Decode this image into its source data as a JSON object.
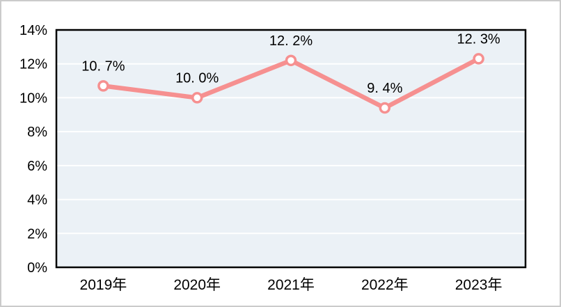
{
  "chart_data": {
    "type": "line",
    "title": "",
    "categories": [
      "2019年",
      "2020年",
      "2021年",
      "2022年",
      "2023年"
    ],
    "series": [
      {
        "name": "",
        "values": [
          10.7,
          10.0,
          12.2,
          9.4,
          12.3
        ],
        "point_labels": [
          "10. 7%",
          "10. 0%",
          "12. 2%",
          "9. 4%",
          "12. 3%"
        ]
      }
    ],
    "xlabel": "",
    "ylabel": "",
    "ylim": [
      0,
      14
    ],
    "ytick_step": 2,
    "ytick_labels": [
      "0%",
      "2%",
      "4%",
      "6%",
      "8%",
      "10%",
      "12%",
      "14%"
    ],
    "grid": "horizontal",
    "legend_position": "none"
  },
  "colors": {
    "line": "#f69090",
    "marker_fill": "#ffffff",
    "marker_stroke": "#f69090",
    "plot_background": "#ebf1f6",
    "gridline": "#ffffff",
    "plot_border": "#000000",
    "text": "#000000",
    "outer_border": "#cbcbcb"
  }
}
